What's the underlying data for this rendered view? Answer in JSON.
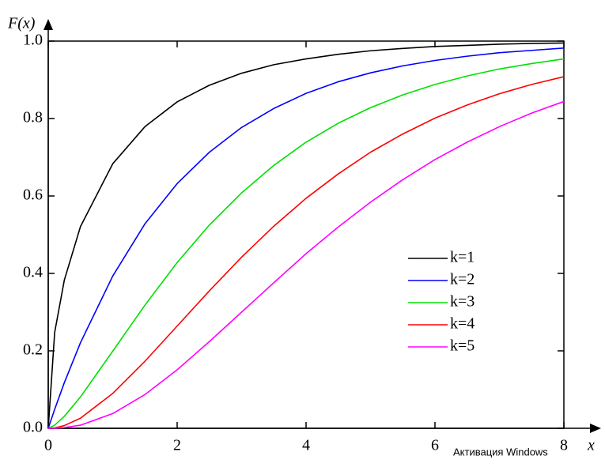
{
  "chart_data": {
    "type": "line",
    "ylabel": "F(x)",
    "xlabel": "x",
    "x": [
      0,
      0.1,
      0.25,
      0.5,
      1,
      1.5,
      2,
      2.5,
      3,
      3.5,
      4,
      4.5,
      5,
      5.5,
      6,
      6.5,
      7,
      7.5,
      8
    ],
    "series": [
      {
        "name": "k=1",
        "color": "#000000",
        "values": [
          0,
          0.248,
          0.383,
          0.521,
          0.683,
          0.779,
          0.843,
          0.886,
          0.917,
          0.939,
          0.954,
          0.966,
          0.975,
          0.981,
          0.986,
          0.989,
          0.992,
          0.994,
          0.995
        ]
      },
      {
        "name": "k=2",
        "color": "#0000ff",
        "values": [
          0,
          0.049,
          0.118,
          0.221,
          0.393,
          0.528,
          0.632,
          0.713,
          0.777,
          0.826,
          0.865,
          0.895,
          0.918,
          0.936,
          0.95,
          0.961,
          0.97,
          0.976,
          0.982
        ]
      },
      {
        "name": "k=3",
        "color": "#00e000",
        "values": [
          0,
          0.008,
          0.031,
          0.081,
          0.199,
          0.318,
          0.428,
          0.525,
          0.608,
          0.679,
          0.739,
          0.788,
          0.828,
          0.861,
          0.888,
          0.91,
          0.928,
          0.942,
          0.954
        ]
      },
      {
        "name": "k=4",
        "color": "#ff0000",
        "values": [
          0,
          0.001,
          0.007,
          0.026,
          0.09,
          0.173,
          0.264,
          0.355,
          0.442,
          0.522,
          0.594,
          0.657,
          0.713,
          0.76,
          0.801,
          0.835,
          0.864,
          0.888,
          0.908
        ]
      },
      {
        "name": "k=5",
        "color": "#ff00ff",
        "values": [
          0,
          0.0002,
          0.002,
          0.008,
          0.038,
          0.087,
          0.151,
          0.224,
          0.3,
          0.376,
          0.451,
          0.52,
          0.584,
          0.642,
          0.694,
          0.739,
          0.779,
          0.814,
          0.844
        ]
      }
    ],
    "xlim": [
      0,
      8
    ],
    "ylim": [
      0,
      1
    ],
    "xticks": [
      0,
      2,
      4,
      6,
      8
    ],
    "yticks": [
      {
        "value": 0,
        "label": "0.0"
      },
      0.2,
      0.4,
      0.6,
      0.8,
      {
        "value": 1,
        "label": "1.0"
      }
    ],
    "legend": "right",
    "watermark": "Активация Windows"
  }
}
